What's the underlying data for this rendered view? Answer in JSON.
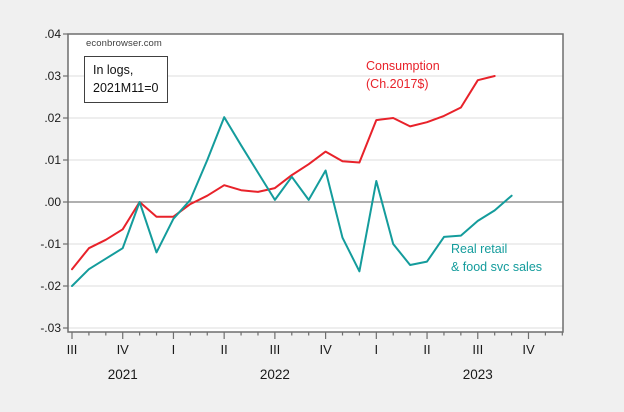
{
  "annotations": {
    "watermark": "econbrowser.com",
    "note_line1": "In logs,",
    "note_line2": "2021M11=0",
    "consumption_label_line1": "Consumption",
    "consumption_label_line2": "(Ch.2017$)",
    "retail_label_line1": "Real retail",
    "retail_label_line2": "& food svc sales"
  },
  "colors": {
    "consumption": "#e8222a",
    "retail": "#149c9c",
    "background": "#f0f0f0",
    "plot_bg": "#ffffff",
    "grid": "#dcdcdc",
    "zero_line": "#808080",
    "frame": "#6e6e6e",
    "tick_text": "#1a1a1a"
  },
  "chart_data": {
    "type": "line",
    "title": "",
    "subtitle": "In logs, 2021M11=0",
    "x_unit": "month",
    "months": [
      "2021M07",
      "2021M08",
      "2021M09",
      "2021M10",
      "2021M11",
      "2021M12",
      "2022M01",
      "2022M02",
      "2022M03",
      "2022M04",
      "2022M05",
      "2022M06",
      "2022M07",
      "2022M08",
      "2022M09",
      "2022M10",
      "2022M11",
      "2022M12",
      "2023M01",
      "2023M02",
      "2023M03",
      "2023M04",
      "2023M05",
      "2023M06",
      "2023M07",
      "2023M08",
      "2023M09"
    ],
    "series": [
      {
        "name": "Consumption (Ch.2017$)",
        "color_key": "consumption",
        "values": [
          -0.016,
          -0.011,
          -0.009,
          -0.0065,
          0.0,
          -0.0035,
          -0.0035,
          -0.0005,
          0.0015,
          0.004,
          0.0028,
          0.0024,
          0.0033,
          0.0064,
          0.009,
          0.012,
          0.0097,
          0.0094,
          0.0195,
          0.02,
          0.018,
          0.019,
          0.0205,
          0.0225,
          0.029,
          0.03
        ]
      },
      {
        "name": "Real retail & food svc sales",
        "color_key": "retail",
        "values": [
          -0.02,
          -0.016,
          -0.0135,
          -0.011,
          0.0,
          -0.012,
          -0.004,
          0.0005,
          0.01,
          0.0202,
          0.0135,
          0.007,
          0.0005,
          0.006,
          0.0005,
          0.0075,
          -0.0085,
          -0.0165,
          0.005,
          -0.01,
          -0.015,
          -0.0142,
          -0.0083,
          -0.008,
          -0.0045,
          -0.002,
          0.0015
        ]
      }
    ],
    "y_ticks": [
      {
        "label": ".04",
        "value": 0.04
      },
      {
        "label": ".03",
        "value": 0.03
      },
      {
        "label": ".02",
        "value": 0.02
      },
      {
        "label": ".01",
        "value": 0.01
      },
      {
        "label": ".00",
        "value": 0.0
      },
      {
        "label": "-.01",
        "value": -0.01
      },
      {
        "label": "-.02",
        "value": -0.02
      },
      {
        "label": "-.03",
        "value": -0.03
      }
    ],
    "ylim": [
      -0.031,
      0.04
    ],
    "grid": true,
    "zero_line": true,
    "quarter_ticks": [
      {
        "label": "III",
        "month_index": 0
      },
      {
        "label": "IV",
        "month_index": 3
      },
      {
        "label": "I",
        "month_index": 6
      },
      {
        "label": "II",
        "month_index": 9
      },
      {
        "label": "III",
        "month_index": 12
      },
      {
        "label": "IV",
        "month_index": 15
      },
      {
        "label": "I",
        "month_index": 18
      },
      {
        "label": "II",
        "month_index": 21
      },
      {
        "label": "III",
        "month_index": 24
      },
      {
        "label": "IV",
        "month_index": 27
      }
    ],
    "year_labels": [
      {
        "label": "2021",
        "month_index": 3
      },
      {
        "label": "2022",
        "month_index": 12
      },
      {
        "label": "2023",
        "month_index": 24
      }
    ],
    "minor_tick_count": 30
  }
}
